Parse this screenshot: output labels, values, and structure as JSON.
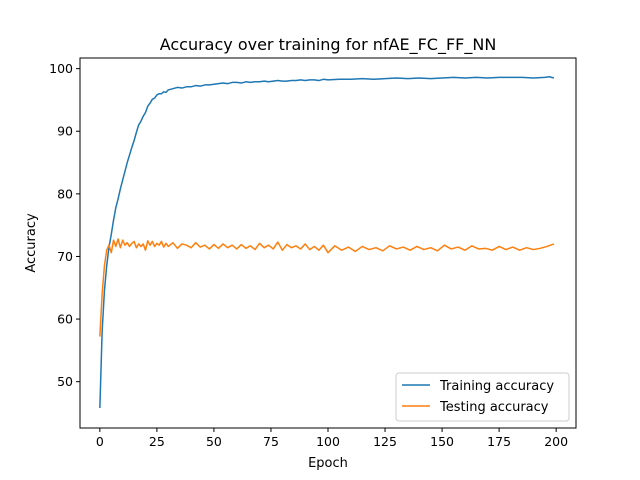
{
  "chart_data": {
    "type": "line",
    "title": "Accuracy over training for nfAE_FC_FF_NN",
    "xlabel": "Epoch",
    "ylabel": "Accuracy",
    "xlim": [
      -8.7,
      208.7
    ],
    "ylim": [
      42.6,
      101.7
    ],
    "xticks": [
      0,
      25,
      50,
      75,
      100,
      125,
      150,
      175,
      200
    ],
    "yticks": [
      50,
      60,
      70,
      80,
      90,
      100
    ],
    "grid": false,
    "legend_position": "lower-right",
    "series": [
      {
        "name": "Training accuracy",
        "color": "#1f77b4",
        "x": [
          0,
          1,
          2,
          3,
          4,
          5,
          6,
          7,
          8,
          9,
          10,
          11,
          12,
          13,
          14,
          15,
          16,
          17,
          18,
          19,
          20,
          21,
          22,
          23,
          24,
          25,
          26,
          27,
          28,
          29,
          30,
          32,
          34,
          36,
          38,
          40,
          42,
          44,
          46,
          48,
          50,
          52,
          54,
          56,
          58,
          60,
          62,
          64,
          66,
          68,
          70,
          72,
          74,
          76,
          78,
          80,
          82,
          84,
          86,
          88,
          90,
          92,
          94,
          96,
          98,
          100,
          105,
          110,
          115,
          120,
          125,
          130,
          135,
          140,
          145,
          150,
          155,
          160,
          165,
          170,
          175,
          180,
          185,
          190,
          195,
          197,
          199
        ],
        "y": [
          45.8,
          58.0,
          64.5,
          68.5,
          71.5,
          73.5,
          75.8,
          77.8,
          79.2,
          80.8,
          82.2,
          83.6,
          85.0,
          86.2,
          87.4,
          88.5,
          89.8,
          91.0,
          91.6,
          92.4,
          93.0,
          94.0,
          94.5,
          95.1,
          95.3,
          95.8,
          96.0,
          96.0,
          96.3,
          96.2,
          96.6,
          96.8,
          97.0,
          96.9,
          97.1,
          97.1,
          97.3,
          97.2,
          97.4,
          97.4,
          97.5,
          97.6,
          97.7,
          97.6,
          97.8,
          97.8,
          97.7,
          97.9,
          97.8,
          97.9,
          97.9,
          98.0,
          97.9,
          98.0,
          98.1,
          98.0,
          98.0,
          98.1,
          98.1,
          98.2,
          98.1,
          98.2,
          98.2,
          98.1,
          98.3,
          98.2,
          98.3,
          98.3,
          98.4,
          98.3,
          98.4,
          98.5,
          98.4,
          98.5,
          98.4,
          98.5,
          98.6,
          98.5,
          98.6,
          98.5,
          98.6,
          98.6,
          98.6,
          98.5,
          98.6,
          98.7,
          98.5
        ]
      },
      {
        "name": "Testing accuracy",
        "color": "#ff7f0e",
        "x": [
          0,
          1,
          2,
          3,
          4,
          5,
          6,
          7,
          8,
          9,
          10,
          11,
          12,
          13,
          14,
          15,
          16,
          17,
          18,
          19,
          20,
          21,
          22,
          23,
          24,
          25,
          26,
          27,
          28,
          29,
          30,
          32,
          34,
          36,
          38,
          40,
          42,
          44,
          46,
          48,
          50,
          52,
          54,
          56,
          58,
          60,
          62,
          64,
          66,
          68,
          70,
          72,
          74,
          76,
          78,
          80,
          82,
          84,
          86,
          88,
          90,
          92,
          94,
          96,
          98,
          100,
          103,
          106,
          109,
          112,
          115,
          118,
          121,
          124,
          127,
          130,
          133,
          136,
          139,
          142,
          145,
          148,
          151,
          154,
          157,
          160,
          163,
          166,
          169,
          172,
          175,
          178,
          181,
          184,
          187,
          190,
          193,
          196,
          199
        ],
        "y": [
          57.2,
          64.0,
          68.5,
          71.0,
          71.8,
          70.6,
          72.6,
          71.6,
          72.8,
          71.4,
          72.6,
          71.8,
          72.2,
          71.6,
          72.1,
          72.4,
          71.4,
          72.0,
          71.6,
          72.0,
          71.0,
          72.5,
          71.8,
          72.4,
          71.6,
          72.1,
          71.8,
          72.4,
          71.5,
          72.1,
          71.6,
          72.2,
          71.3,
          72.0,
          71.8,
          71.4,
          72.2,
          71.5,
          71.8,
          71.2,
          71.9,
          71.3,
          72.0,
          71.4,
          71.8,
          71.2,
          71.9,
          71.3,
          71.7,
          71.1,
          72.1,
          71.4,
          71.8,
          71.2,
          72.3,
          71.0,
          71.9,
          71.4,
          71.7,
          71.2,
          72.0,
          71.1,
          71.6,
          71.0,
          71.8,
          70.6,
          71.7,
          71.0,
          71.5,
          70.8,
          71.6,
          71.1,
          71.4,
          70.9,
          71.7,
          71.2,
          71.5,
          71.0,
          71.6,
          71.1,
          71.4,
          70.9,
          71.8,
          71.2,
          71.5,
          71.0,
          71.7,
          71.2,
          71.3,
          71.0,
          71.6,
          71.1,
          71.5,
          71.0,
          71.4,
          71.1,
          71.3,
          71.6,
          72.0
        ]
      }
    ]
  }
}
